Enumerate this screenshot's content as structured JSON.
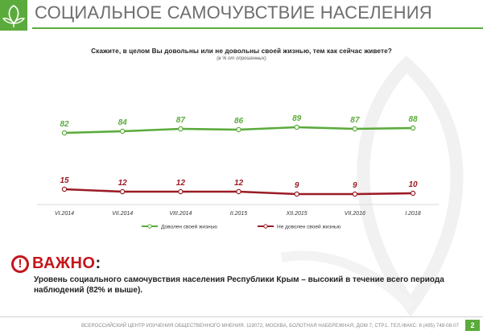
{
  "header": {
    "title": "СОЦИАЛЬНОЕ САМОЧУВСТВИЕ НАСЕЛЕНИЯ",
    "accent_color": "#5aab3c"
  },
  "question": {
    "text": "Скажите, в целом Вы довольны или не довольны своей жизнью, тем как сейчас живете?",
    "note": "(в % от опрошенных)"
  },
  "chart_data": {
    "type": "line",
    "categories": [
      "VI.2014",
      "VII.2014",
      "VIII.2014",
      "II.2015",
      "XII.2015",
      "VII.2016",
      "I.2018"
    ],
    "series": [
      {
        "name": "Доволен своей жизнью",
        "color": "#5aab3c",
        "values": [
          82,
          84,
          87,
          86,
          89,
          87,
          88
        ]
      },
      {
        "name": "Не доволен своей жизнью",
        "color": "#9b1b25",
        "values": [
          15,
          12,
          12,
          12,
          9,
          9,
          10
        ]
      }
    ],
    "ylim": [
      0,
      100
    ],
    "grid": false,
    "legend_position": "bottom"
  },
  "warning": {
    "icon": "exclamation-icon",
    "title": "ВАЖНО",
    "colon": ":",
    "color": "#c3161c"
  },
  "conclusion": "Уровень социального самочувствия населения Республики Крым – высокий в течение всего периода наблюдений (82% и выше).",
  "footer": {
    "text": "ВСЕРОССИЙСКИЙ ЦЕНТР ИЗУЧЕНИЯ ОБЩЕСТВЕННОГО МНЕНИЯ. 119072, МОСКВА, БОЛОТНАЯ НАБЕРЕЖНАЯ, ДОМ 7, СТР.1. ТЕЛ./ФАКС: 8 (495) 748-08-07",
    "page": "2"
  }
}
